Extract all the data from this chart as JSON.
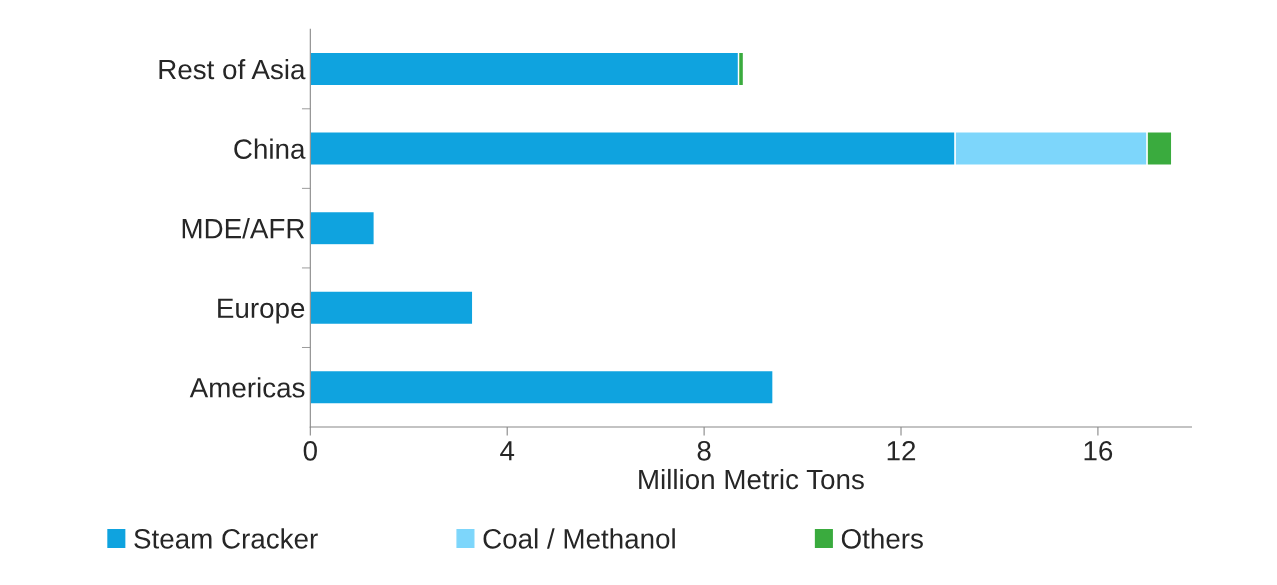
{
  "chart_data": {
    "type": "bar",
    "orientation": "horizontal",
    "stacked": true,
    "xlabel": "Million Metric Tons",
    "categories": [
      "Rest of Asia",
      "China",
      "MDE/AFR",
      "Europe",
      "Americas"
    ],
    "series": [
      {
        "name": "Steam Cracker",
        "color": "#0fa3df",
        "values": [
          8.7,
          13.1,
          1.3,
          3.3,
          9.4
        ]
      },
      {
        "name": "Coal / Methanol",
        "color": "#7dd6fb",
        "values": [
          null,
          3.9,
          null,
          null,
          null
        ]
      },
      {
        "name": "Others",
        "color": "#3aab3e",
        "values": [
          0.1,
          0.5,
          null,
          null,
          null
        ]
      }
    ],
    "xlim": [
      0,
      17.9
    ],
    "xticks": [
      0,
      4,
      8,
      12,
      16
    ],
    "grid": false,
    "legend": "bottom"
  }
}
